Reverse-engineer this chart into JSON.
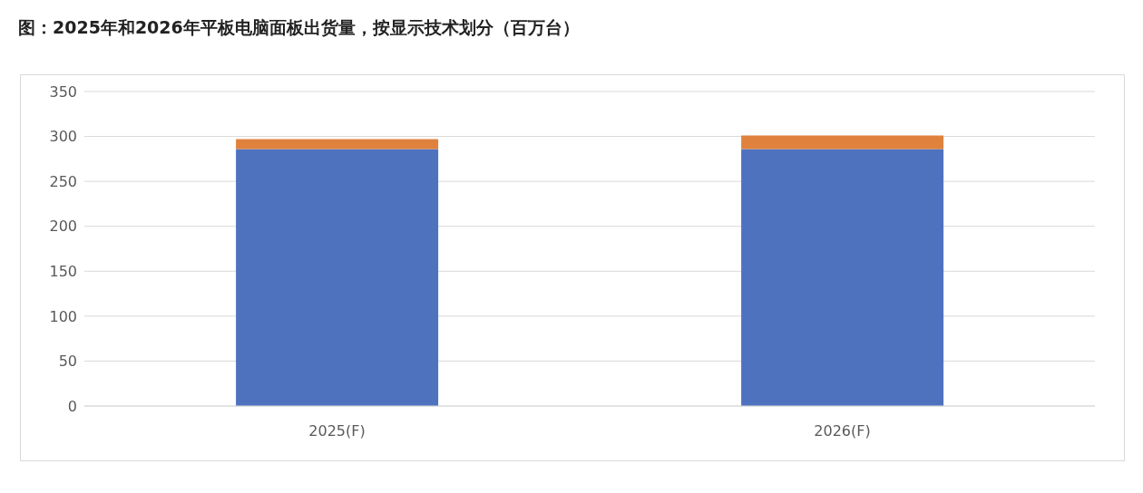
{
  "chart_data": {
    "type": "bar",
    "title": "图：2025年和2026年平板电脑面板出货量，按显示技术划分（百万台）",
    "categories": [
      "2025(F)",
      "2026(F)"
    ],
    "stacked": true,
    "series": [
      {
        "color": "#4f72bf",
        "values": [
          286,
          286
        ]
      },
      {
        "color": "#e0823e",
        "values": [
          11,
          15
        ]
      }
    ],
    "ylim": [
      0,
      350
    ],
    "yticks": [
      0,
      50,
      100,
      150,
      200,
      250,
      300,
      350
    ],
    "grid": "y",
    "legend": false
  }
}
